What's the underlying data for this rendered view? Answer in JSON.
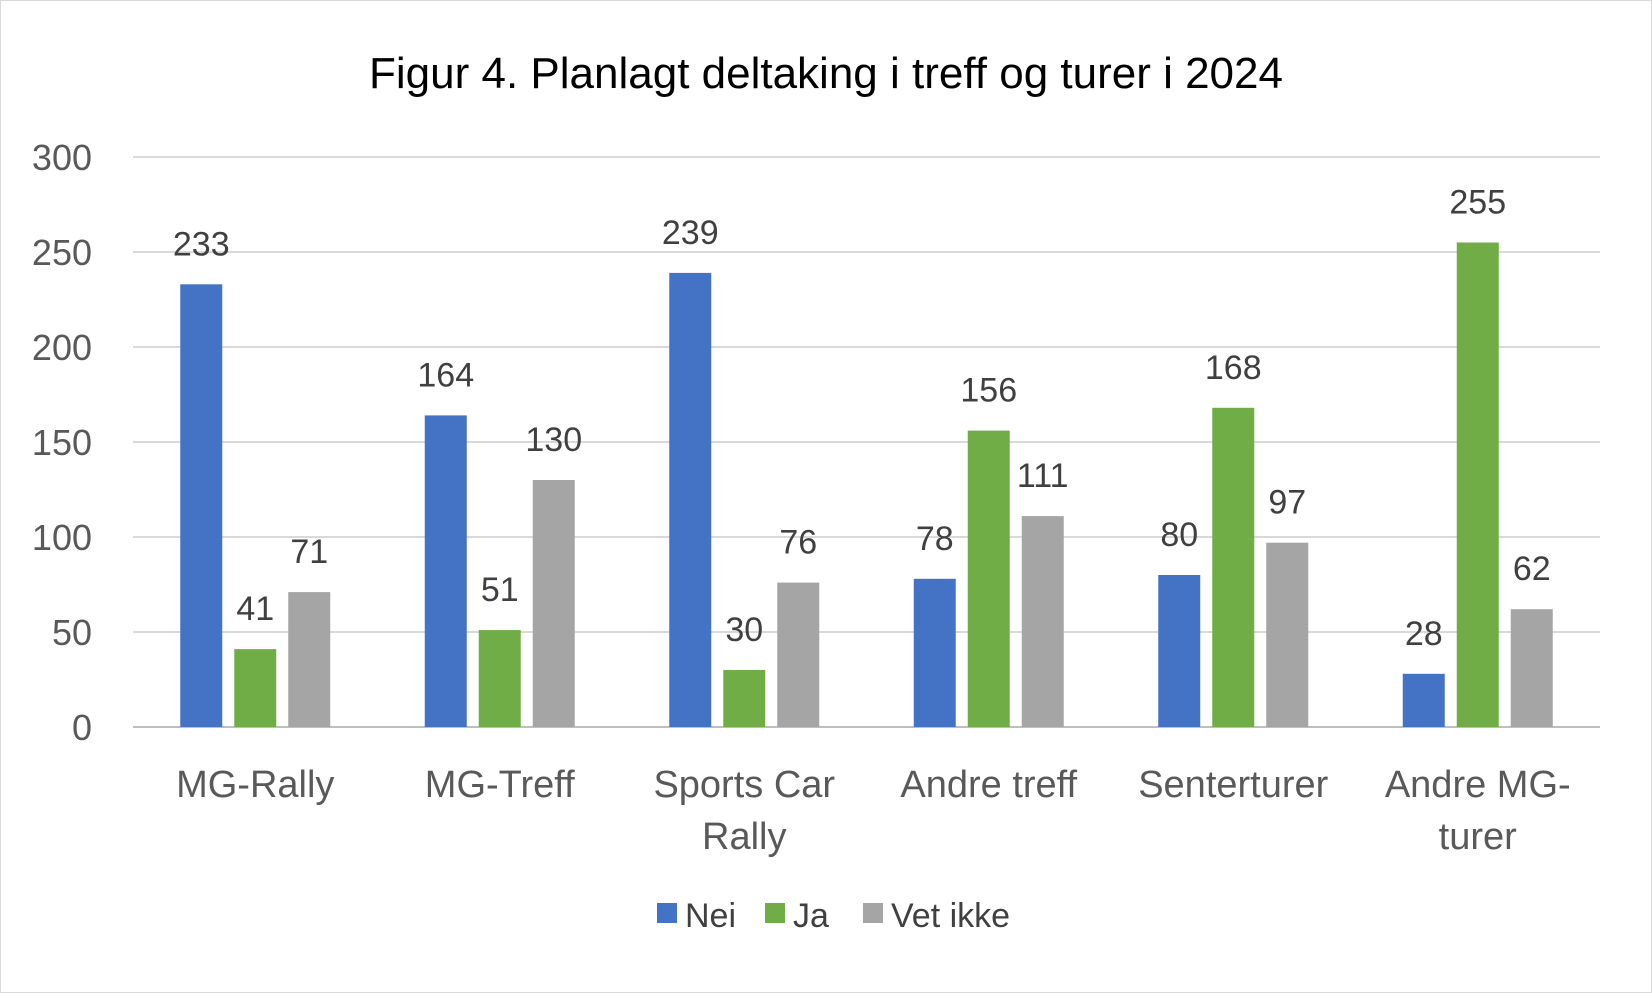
{
  "chart_data": {
    "type": "bar",
    "title": "Figur 4. Planlagt deltaking i treff og turer i 2024",
    "categories": [
      [
        "MG-Rally"
      ],
      [
        "MG-Treff"
      ],
      [
        "Sports Car",
        "Rally"
      ],
      [
        "Andre treff"
      ],
      [
        "Senterturer"
      ],
      [
        "Andre MG-",
        "turer"
      ]
    ],
    "series": [
      {
        "name": "Nei",
        "color": "#4472c4",
        "values": [
          233,
          164,
          239,
          78,
          80,
          28
        ]
      },
      {
        "name": "Ja",
        "color": "#70ad47",
        "values": [
          41,
          51,
          30,
          156,
          168,
          255
        ]
      },
      {
        "name": "Vet ikke",
        "color": "#a5a5a5",
        "values": [
          71,
          130,
          76,
          111,
          97,
          62
        ]
      }
    ],
    "ylim": [
      0,
      300
    ],
    "yticks": [
      "0",
      "50",
      "100",
      "150",
      "200",
      "250",
      "300"
    ],
    "grid": true,
    "legend": "bottom"
  }
}
